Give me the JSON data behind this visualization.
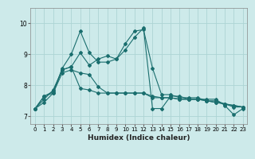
{
  "title": "",
  "xlabel": "Humidex (Indice chaleur)",
  "bg_color": "#cdeaea",
  "grid_color": "#add4d4",
  "line_color": "#1a6e6e",
  "xlim": [
    -0.5,
    23.5
  ],
  "ylim": [
    6.75,
    10.5
  ],
  "yticks": [
    7,
    8,
    9,
    10
  ],
  "xticks": [
    0,
    1,
    2,
    3,
    4,
    5,
    6,
    7,
    8,
    9,
    10,
    11,
    12,
    13,
    14,
    15,
    16,
    17,
    18,
    19,
    20,
    21,
    22,
    23
  ],
  "series": [
    [
      7.25,
      7.45,
      7.75,
      8.55,
      9.0,
      9.75,
      9.05,
      8.75,
      8.75,
      8.85,
      9.15,
      9.55,
      9.85,
      7.25,
      7.25,
      7.65,
      7.65,
      7.55,
      7.55,
      7.55,
      7.55,
      7.35,
      7.05,
      7.25
    ],
    [
      7.25,
      7.55,
      7.85,
      8.5,
      8.6,
      9.05,
      8.65,
      8.85,
      8.95,
      8.85,
      9.35,
      9.75,
      9.8,
      8.55,
      7.7,
      7.7,
      7.6,
      7.6,
      7.6,
      7.5,
      7.5,
      7.4,
      7.3,
      7.3
    ],
    [
      7.25,
      7.65,
      7.8,
      8.5,
      8.6,
      7.9,
      7.85,
      7.75,
      7.75,
      7.75,
      7.75,
      7.75,
      7.75,
      7.65,
      7.6,
      7.6,
      7.55,
      7.55,
      7.55,
      7.5,
      7.45,
      7.4,
      7.35,
      7.3
    ],
    [
      7.25,
      7.65,
      7.75,
      8.4,
      8.5,
      8.4,
      8.35,
      7.95,
      7.75,
      7.75,
      7.75,
      7.75,
      7.75,
      7.6,
      7.6,
      7.6,
      7.55,
      7.55,
      7.55,
      7.5,
      7.45,
      7.4,
      7.35,
      7.3
    ]
  ]
}
